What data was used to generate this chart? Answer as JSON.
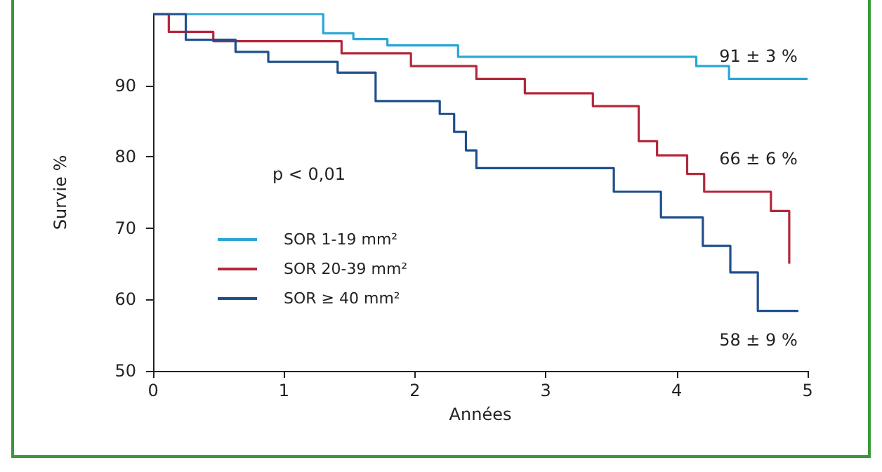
{
  "chart_data": {
    "type": "step",
    "xlabel": "Années",
    "ylabel": "Survie %",
    "xlim": [
      0,
      5
    ],
    "xticks": [
      0,
      1,
      2,
      3,
      4,
      5
    ],
    "ylim": [
      50,
      100
    ],
    "yticks": [
      50,
      60,
      70,
      80,
      90
    ],
    "legend": "left",
    "grid": false,
    "marker": "none",
    "annotations": [
      "p < 0,01",
      "91 ± 3 %",
      "66 ± 6 %",
      "58 ± 9 %"
    ],
    "series": [
      {
        "name": "SOR 1-19 mm²",
        "color": "#2aa6d6",
        "x": [
          0,
          1.3,
          1.53,
          1.79,
          2.33,
          4.15,
          4.4,
          5.0
        ],
        "values": [
          100,
          97.3,
          96.5,
          95.6,
          94,
          92.7,
          90.9,
          90.9
        ]
      },
      {
        "name": "SOR 20-39 mm²",
        "color": "#b3283c",
        "x": [
          0,
          0.12,
          0.46,
          1.44,
          1.97,
          2.47,
          2.84,
          3.36,
          3.71,
          3.85,
          4.08,
          4.21,
          4.72,
          4.86
        ],
        "values": [
          100,
          97.5,
          96.2,
          94.5,
          92.7,
          90.9,
          88.9,
          87.1,
          82.2,
          80.2,
          77.6,
          75.1,
          72.4,
          65
        ]
      },
      {
        "name": "SOR ≥ 40 mm²",
        "color": "#1f4f8c",
        "x": [
          0,
          0.25,
          0.63,
          0.88,
          1.41,
          1.7,
          2.19,
          2.3,
          2.39,
          2.47,
          3.52,
          3.88,
          4.2,
          4.41,
          4.62,
          4.93
        ],
        "values": [
          100,
          96.4,
          94.7,
          93.3,
          91.8,
          87.8,
          86,
          83.5,
          80.9,
          78.4,
          75.1,
          71.5,
          67.5,
          63.8,
          58.4,
          58.4
        ]
      }
    ]
  }
}
